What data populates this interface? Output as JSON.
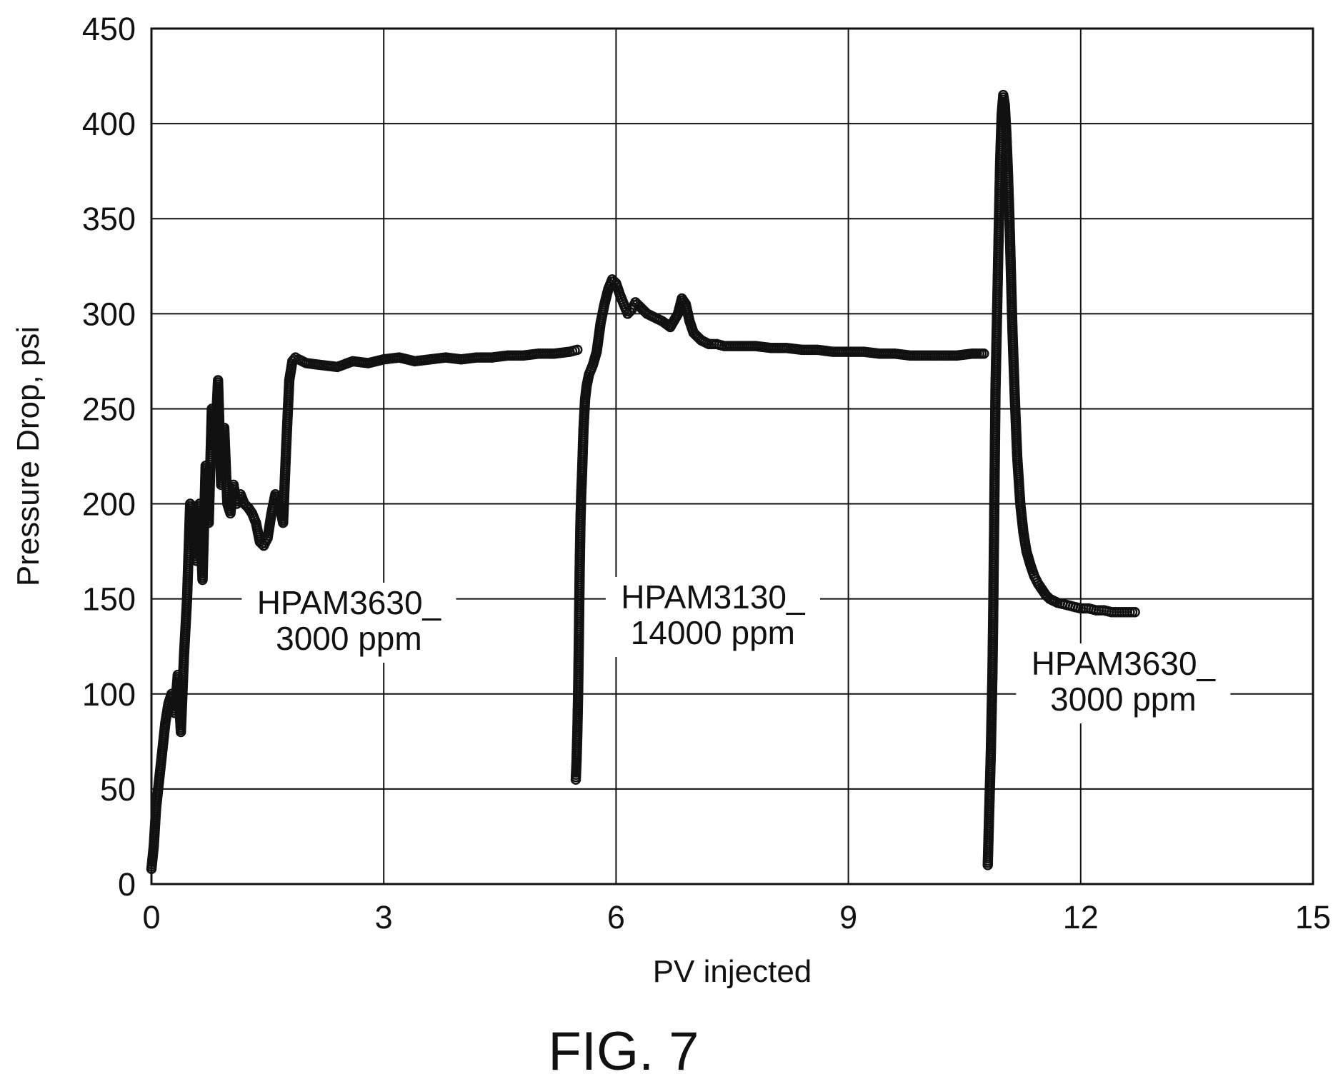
{
  "chart_data": {
    "type": "scatter",
    "title": "",
    "xlabel": "PV injected",
    "ylabel": "Pressure Drop, psi",
    "xlim": [
      0,
      15
    ],
    "ylim": [
      0,
      450
    ],
    "xticks": [
      0,
      3,
      6,
      9,
      12,
      15
    ],
    "yticks": [
      0,
      50,
      100,
      150,
      200,
      250,
      300,
      350,
      400,
      450
    ],
    "grid": true,
    "marker": "open-circle",
    "annotations": [
      {
        "line1": "HPAM3630_",
        "line2": "3000 ppm",
        "x": 2.55,
        "y": 142
      },
      {
        "line1": "HPAM3130_",
        "line2": "14000 ppm",
        "x": 7.25,
        "y": 145
      },
      {
        "line1": "HPAM3630_",
        "line2": "3000 ppm",
        "x": 12.55,
        "y": 110
      }
    ],
    "series": [
      {
        "x": [
          0.0,
          0.03,
          0.06,
          0.1,
          0.14,
          0.18,
          0.22,
          0.26,
          0.3,
          0.34,
          0.38,
          0.42,
          0.46,
          0.5,
          0.54,
          0.58,
          0.62,
          0.66,
          0.7,
          0.74,
          0.78,
          0.82,
          0.86,
          0.9,
          0.94,
          0.98,
          1.02,
          1.06,
          1.1,
          1.15,
          1.2,
          1.25,
          1.3,
          1.35,
          1.4,
          1.45,
          1.5,
          1.55,
          1.6,
          1.65,
          1.7,
          1.74,
          1.78,
          1.82,
          1.86,
          1.9,
          2.0,
          2.2,
          2.4,
          2.6,
          2.8,
          3.0,
          3.2,
          3.4,
          3.6,
          3.8,
          4.0,
          4.2,
          4.4,
          4.6,
          4.8,
          5.0,
          5.2,
          5.4,
          5.5
        ],
        "y": [
          8,
          20,
          40,
          55,
          70,
          85,
          95,
          100,
          90,
          110,
          80,
          120,
          150,
          200,
          180,
          170,
          200,
          160,
          220,
          190,
          250,
          230,
          265,
          210,
          240,
          200,
          195,
          210,
          200,
          205,
          200,
          198,
          195,
          190,
          180,
          178,
          182,
          195,
          205,
          200,
          190,
          230,
          265,
          275,
          277,
          276,
          274,
          273,
          272,
          275,
          274,
          276,
          277,
          275,
          276,
          277,
          276,
          277,
          277,
          278,
          278,
          279,
          279,
          280,
          281
        ]
      },
      {
        "x": [
          5.48,
          5.49,
          5.5,
          5.51,
          5.52,
          5.53,
          5.54,
          5.55,
          5.56,
          5.58,
          5.6,
          5.62,
          5.65,
          5.7,
          5.75,
          5.8,
          5.85,
          5.9,
          5.95,
          6.0,
          6.05,
          6.1,
          6.15,
          6.2,
          6.25,
          6.3,
          6.4,
          6.5,
          6.6,
          6.7,
          6.8,
          6.85,
          6.9,
          6.95,
          7.0,
          7.1,
          7.2,
          7.3,
          7.4,
          7.6,
          7.8,
          8.0,
          8.2,
          8.4,
          8.6,
          8.8,
          9.0,
          9.2,
          9.4,
          9.6,
          9.8,
          10.0,
          10.2,
          10.4,
          10.6,
          10.75
        ],
        "y": [
          55,
          65,
          80,
          100,
          130,
          165,
          190,
          205,
          215,
          240,
          255,
          262,
          268,
          273,
          280,
          295,
          305,
          313,
          318,
          316,
          310,
          305,
          300,
          302,
          306,
          304,
          300,
          298,
          296,
          293,
          300,
          308,
          305,
          296,
          290,
          286,
          284,
          284,
          283,
          283,
          283,
          282,
          282,
          281,
          281,
          280,
          280,
          280,
          279,
          279,
          278,
          278,
          278,
          278,
          279,
          279
        ]
      },
      {
        "x": [
          10.8,
          10.81,
          10.82,
          10.83,
          10.84,
          10.85,
          10.86,
          10.87,
          10.88,
          10.89,
          10.9,
          10.92,
          10.94,
          10.96,
          10.98,
          11.0,
          11.02,
          11.04,
          11.06,
          11.08,
          11.1,
          11.12,
          11.15,
          11.18,
          11.22,
          11.26,
          11.3,
          11.35,
          11.4,
          11.45,
          11.5,
          11.55,
          11.6,
          11.7,
          11.8,
          11.9,
          12.0,
          12.1,
          12.2,
          12.3,
          12.4,
          12.5,
          12.6,
          12.7
        ],
        "y": [
          10,
          25,
          40,
          55,
          70,
          90,
          110,
          140,
          180,
          220,
          260,
          300,
          340,
          380,
          405,
          415,
          410,
          395,
          375,
          350,
          320,
          290,
          255,
          225,
          200,
          185,
          175,
          168,
          162,
          158,
          155,
          152,
          150,
          148,
          147,
          146,
          145,
          145,
          144,
          144,
          143,
          143,
          143,
          143
        ]
      }
    ]
  },
  "figure": {
    "caption": "FIG. 7"
  }
}
